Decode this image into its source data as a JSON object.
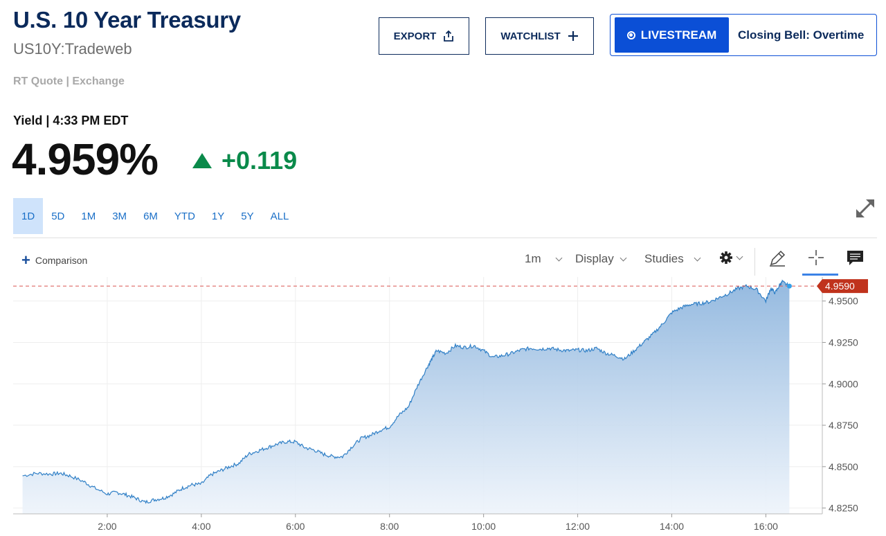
{
  "header": {
    "title": "U.S. 10 Year Treasury",
    "subtitle": "US10Y:Tradeweb",
    "quote_source": "RT Quote | Exchange",
    "export_label": "EXPORT",
    "watchlist_label": "WATCHLIST",
    "livestream_label": "LIVESTREAM",
    "show_name": "Closing Bell: Overtime"
  },
  "quote": {
    "label": "Yield | 4:33 PM EDT",
    "price": "4.959%",
    "change": "+0.119",
    "change_color": "#0a8a4a"
  },
  "ranges": [
    {
      "label": "1D",
      "active": true
    },
    {
      "label": "5D"
    },
    {
      "label": "1M"
    },
    {
      "label": "3M"
    },
    {
      "label": "6M"
    },
    {
      "label": "YTD"
    },
    {
      "label": "1Y"
    },
    {
      "label": "5Y"
    },
    {
      "label": "ALL"
    }
  ],
  "toolbar": {
    "comparison_label": "Comparison",
    "interval_label": "1m",
    "display_label": "Display",
    "studies_label": "Studies",
    "icons": [
      "gear-icon",
      "pencil-icon",
      "crosshair-icon",
      "comment-icon",
      "expand-icon",
      "export-icon",
      "plus-icon"
    ]
  },
  "chart_data": {
    "type": "area",
    "series_color": "#2f7fc6",
    "last_value_label": "4.9590",
    "last_value_color": "#c0331d",
    "y_ticks": [
      "4.9500",
      "4.9250",
      "4.9000",
      "4.8750",
      "4.8500",
      "4.8250"
    ],
    "x_ticks": [
      "2:00",
      "4:00",
      "6:00",
      "8:00",
      "10:00",
      "12:00",
      "14:00",
      "16:00"
    ],
    "x_range_hours": [
      0.2,
      16.5
    ],
    "ylim": [
      4.8215,
      4.9645
    ],
    "x": [
      0.2,
      0.5,
      0.8,
      1.0,
      1.2,
      1.5,
      1.7,
      2.0,
      2.2,
      2.4,
      2.6,
      2.8,
      3.0,
      3.2,
      3.4,
      3.6,
      3.8,
      4.0,
      4.2,
      4.4,
      4.6,
      4.8,
      5.0,
      5.2,
      5.4,
      5.6,
      5.8,
      6.0,
      6.2,
      6.4,
      6.6,
      6.8,
      7.0,
      7.2,
      7.4,
      7.6,
      7.8,
      8.0,
      8.2,
      8.4,
      8.6,
      8.8,
      8.9,
      9.0,
      9.2,
      9.4,
      9.6,
      9.8,
      10.0,
      10.2,
      10.4,
      10.6,
      10.8,
      11.0,
      11.2,
      11.4,
      11.6,
      11.8,
      12.0,
      12.2,
      12.4,
      12.6,
      12.8,
      13.0,
      13.2,
      13.4,
      13.6,
      13.8,
      14.0,
      14.2,
      14.4,
      14.6,
      14.8,
      15.0,
      15.2,
      15.4,
      15.6,
      15.8,
      16.0,
      16.1,
      16.2,
      16.3,
      16.35,
      16.5
    ],
    "values": [
      4.8445,
      4.846,
      4.8455,
      4.846,
      4.8445,
      4.841,
      4.8375,
      4.8335,
      4.8345,
      4.833,
      4.831,
      4.8285,
      4.83,
      4.831,
      4.8335,
      4.837,
      4.839,
      4.8395,
      4.845,
      4.8475,
      4.85,
      4.852,
      4.8575,
      4.8595,
      4.8615,
      4.8635,
      4.865,
      4.865,
      4.8615,
      4.86,
      4.8575,
      4.856,
      4.856,
      4.862,
      4.867,
      4.869,
      4.872,
      4.874,
      4.881,
      4.886,
      4.899,
      4.91,
      4.915,
      4.92,
      4.9185,
      4.923,
      4.922,
      4.923,
      4.92,
      4.916,
      4.917,
      4.9185,
      4.9205,
      4.9215,
      4.921,
      4.9215,
      4.9205,
      4.92,
      4.9205,
      4.92,
      4.9215,
      4.9185,
      4.917,
      4.915,
      4.92,
      4.925,
      4.93,
      4.936,
      4.943,
      4.946,
      4.948,
      4.9485,
      4.9495,
      4.952,
      4.9545,
      4.9575,
      4.959,
      4.957,
      4.95,
      4.9575,
      4.955,
      4.96,
      4.9615,
      4.959
    ]
  }
}
